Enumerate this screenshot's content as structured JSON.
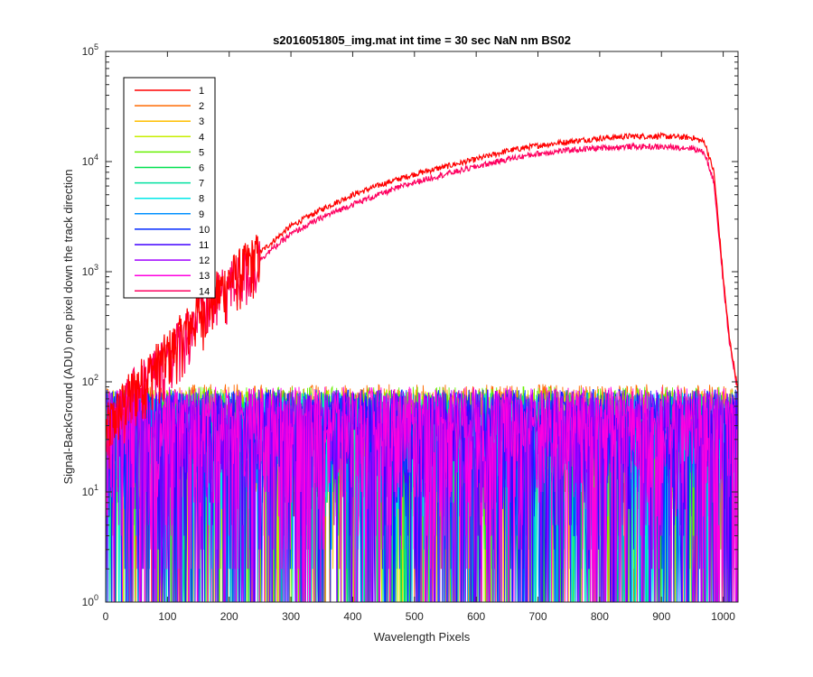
{
  "chart_data": {
    "type": "line",
    "title": "s2016051805_img.mat int time = 30 sec  NaN nm BS02",
    "xlabel": "Wavelength Pixels",
    "ylabel": "Signal-BackGround (ADU) one pixel down the track direction",
    "xlim": [
      0,
      1024
    ],
    "ylim": [
      1,
      100000
    ],
    "yscale": "log",
    "xticks": [
      0,
      100,
      200,
      300,
      400,
      500,
      600,
      700,
      800,
      900,
      1000
    ],
    "yticks": [
      {
        "value": 1,
        "base": "10",
        "exp": "0"
      },
      {
        "value": 10,
        "base": "10",
        "exp": "1"
      },
      {
        "value": 100,
        "base": "10",
        "exp": "2"
      },
      {
        "value": 1000,
        "base": "10",
        "exp": "3"
      },
      {
        "value": 10000,
        "base": "10",
        "exp": "4"
      },
      {
        "value": 100000,
        "base": "10",
        "exp": "5"
      }
    ],
    "grid": false,
    "legend_position": "top-left",
    "series": [
      {
        "name": "1",
        "color": "#ff0000",
        "kind": "spectrum",
        "points": [
          [
            0,
            38
          ],
          [
            50,
            95
          ],
          [
            100,
            180
          ],
          [
            150,
            420
          ],
          [
            200,
            850
          ],
          [
            250,
            1500
          ],
          [
            300,
            2600
          ],
          [
            350,
            3700
          ],
          [
            400,
            5000
          ],
          [
            450,
            6300
          ],
          [
            500,
            7700
          ],
          [
            550,
            9000
          ],
          [
            600,
            10500
          ],
          [
            650,
            12500
          ],
          [
            700,
            14000
          ],
          [
            750,
            15200
          ],
          [
            800,
            16300
          ],
          [
            850,
            17000
          ],
          [
            900,
            17000
          ],
          [
            950,
            16500
          ],
          [
            970,
            15000
          ],
          [
            985,
            8000
          ],
          [
            1000,
            900
          ],
          [
            1010,
            250
          ],
          [
            1024,
            85
          ]
        ]
      },
      {
        "name": "2",
        "color": "#ff6a00",
        "kind": "noise",
        "max": 95
      },
      {
        "name": "3",
        "color": "#ffbf00",
        "kind": "noise",
        "max": 85
      },
      {
        "name": "4",
        "color": "#c8ee00",
        "kind": "noise",
        "max": 85
      },
      {
        "name": "5",
        "color": "#66f000",
        "kind": "noise",
        "max": 90
      },
      {
        "name": "6",
        "color": "#00e050",
        "kind": "noise",
        "max": 80
      },
      {
        "name": "7",
        "color": "#00e0a0",
        "kind": "noise",
        "max": 80
      },
      {
        "name": "8",
        "color": "#00e8e8",
        "kind": "noise",
        "max": 80
      },
      {
        "name": "9",
        "color": "#0090ff",
        "kind": "noise",
        "max": 80
      },
      {
        "name": "10",
        "color": "#0028ff",
        "kind": "noise",
        "max": 85
      },
      {
        "name": "11",
        "color": "#4000ff",
        "kind": "noise",
        "max": 80
      },
      {
        "name": "12",
        "color": "#a000ff",
        "kind": "noise",
        "max": 85
      },
      {
        "name": "13",
        "color": "#ff00e0",
        "kind": "noise",
        "max": 90
      },
      {
        "name": "14",
        "color": "#ff0060",
        "kind": "spectrum",
        "points": [
          [
            0,
            35
          ],
          [
            50,
            90
          ],
          [
            100,
            170
          ],
          [
            150,
            400
          ],
          [
            200,
            780
          ],
          [
            250,
            1300
          ],
          [
            300,
            2200
          ],
          [
            350,
            3100
          ],
          [
            400,
            4100
          ],
          [
            450,
            5200
          ],
          [
            500,
            6500
          ],
          [
            550,
            7700
          ],
          [
            600,
            9000
          ],
          [
            650,
            10500
          ],
          [
            700,
            11800
          ],
          [
            750,
            12700
          ],
          [
            800,
            13300
          ],
          [
            850,
            13700
          ],
          [
            900,
            13600
          ],
          [
            950,
            13300
          ],
          [
            970,
            12000
          ],
          [
            985,
            6500
          ],
          [
            1000,
            800
          ],
          [
            1010,
            230
          ],
          [
            1024,
            80
          ]
        ]
      }
    ]
  }
}
